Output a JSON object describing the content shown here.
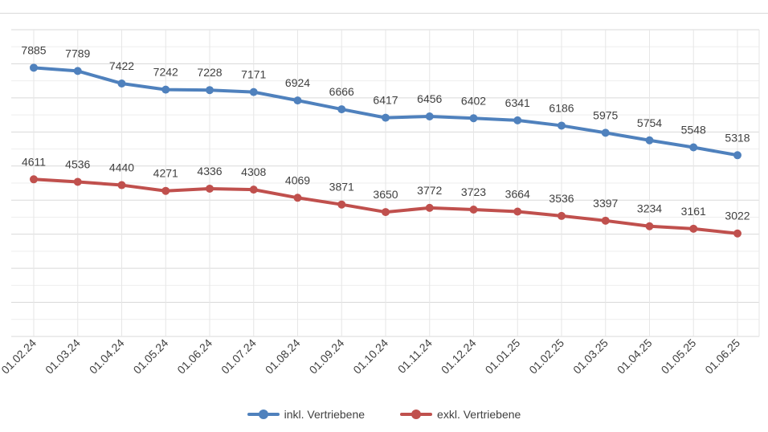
{
  "chart_data": {
    "type": "line",
    "categories": [
      "01.02.24",
      "01.03.24",
      "01.04.24",
      "01.05.24",
      "01.06.24",
      "01.07.24",
      "01.08.24",
      "01.09.24",
      "01.10.24",
      "01.11.24",
      "01.12.24",
      "01.01.25",
      "01.02.25",
      "01.03.25",
      "01.04.25",
      "01.05.25",
      "01.06.25"
    ],
    "series": [
      {
        "name": "inkl. Vertriebene",
        "color": "#4f81bd",
        "values": [
          7885,
          7789,
          7422,
          7242,
          7228,
          7171,
          6924,
          6666,
          6417,
          6456,
          6402,
          6341,
          6186,
          5975,
          5754,
          5548,
          5318
        ]
      },
      {
        "name": "exkl. Vertriebene",
        "color": "#c0504d",
        "values": [
          4611,
          4536,
          4440,
          4271,
          4336,
          4308,
          4069,
          3871,
          3650,
          3772,
          3723,
          3664,
          3536,
          3397,
          3234,
          3161,
          3022
        ]
      }
    ],
    "ylim": [
      0,
      9000
    ],
    "grid": true,
    "legend_position": "bottom",
    "data_labels": true
  }
}
